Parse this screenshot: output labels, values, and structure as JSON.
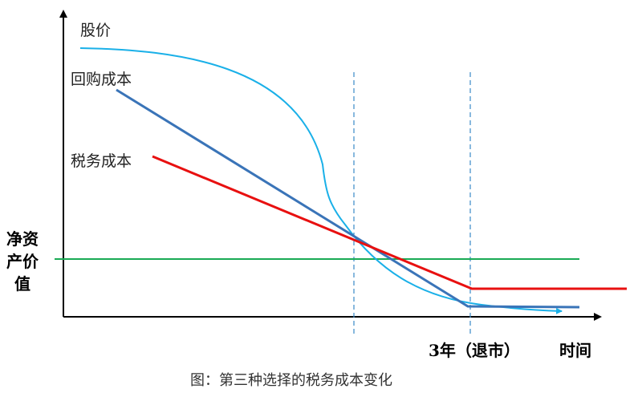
{
  "labels": {
    "stock_price": "股价",
    "buyback_cost": "回购成本",
    "tax_cost": "税务成本",
    "net_asset_line1": "净资",
    "net_asset_line2": "产价",
    "net_asset_line3": "值",
    "delisting_time": "3年（退市）",
    "time_axis": "时间",
    "caption": "图：第三种选择的税务成本变化"
  },
  "colors": {
    "stock_price": "#1ab0e8",
    "buyback_cost": "#3a74b8",
    "tax_cost": "#e81010",
    "net_asset": "#1aaa55",
    "guide": "#3a8ac8",
    "axis": "#000000"
  }
}
